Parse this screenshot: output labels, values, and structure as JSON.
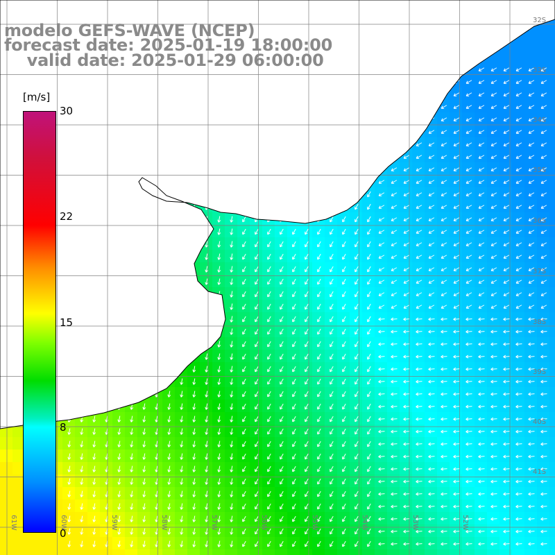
{
  "header": {
    "line1": "modelo GEFS-WAVE (NCEP)",
    "line2": "forecast date: 2025-01-19 18:00:00",
    "line3": "    valid date: 2025-01-29 06:00:00"
  },
  "colorbar": {
    "unit": "[m/s]",
    "ticks": [
      "30",
      "22",
      "15",
      "8",
      "0"
    ],
    "tick_values": [
      30,
      22,
      15,
      8,
      0
    ],
    "colors": [
      "#0000ff",
      "#0090ff",
      "#00ffff",
      "#00dd00",
      "#7fff00",
      "#ffff00",
      "#ff8c00",
      "#ff0000",
      "#c0127a"
    ]
  },
  "axes": {
    "lat_labels": [
      "32S",
      "33S",
      "34S",
      "35S",
      "36S",
      "37S",
      "38S",
      "39S",
      "40S",
      "41S"
    ],
    "lon_labels": [
      "61W",
      "60W",
      "59W",
      "58W",
      "57W",
      "56W",
      "55W",
      "54W",
      "53W",
      "52W"
    ]
  },
  "map": {
    "quantity": "wind speed",
    "land_color": "#ffffff",
    "coastline_color": "#000000",
    "grid_color": "#808080",
    "arrow_color": "#ffffff"
  }
}
